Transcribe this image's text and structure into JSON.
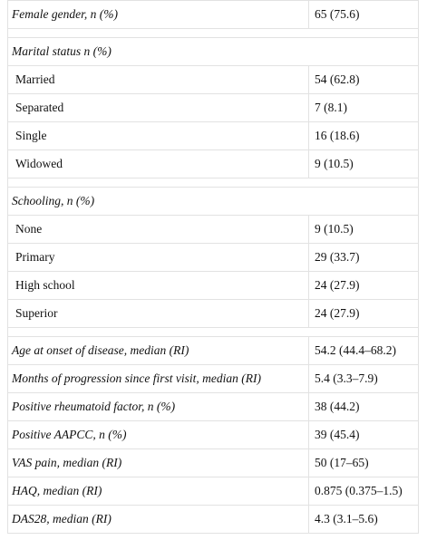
{
  "table": {
    "rows": [
      [
        "Female gender, n (%)",
        "65 (75.6)"
      ],
      [
        "Marital status n (%)"
      ],
      [
        "Married",
        "54 (62.8)"
      ],
      [
        "Separated",
        "7 (8.1)"
      ],
      [
        "Single",
        "16 (18.6)"
      ],
      [
        "Widowed",
        "9 (10.5)"
      ],
      [
        "Schooling, n (%)"
      ],
      [
        "None",
        "9 (10.5)"
      ],
      [
        "Primary",
        "29 (33.7)"
      ],
      [
        "High school",
        "24 (27.9)"
      ],
      [
        "Superior",
        "24 (27.9)"
      ],
      [
        "Age at onset of disease, median (RI)",
        "54.2 (44.4–68.2)"
      ],
      [
        "Months of progression since first visit, median (RI)",
        "5.4 (3.3–7.9)"
      ],
      [
        "Positive rheumatoid factor, n (%)",
        "38 (44.2)"
      ],
      [
        "Positive AAPCC, n (%)",
        "39 (45.4)"
      ],
      [
        "VAS pain, median (RI)",
        "50 (17–65)"
      ],
      [
        "HAQ, median (RI)",
        "0.875 (0.375–1.5)"
      ],
      [
        "DAS28, median (RI)",
        "4.3 (3.1–5.6)"
      ]
    ]
  }
}
